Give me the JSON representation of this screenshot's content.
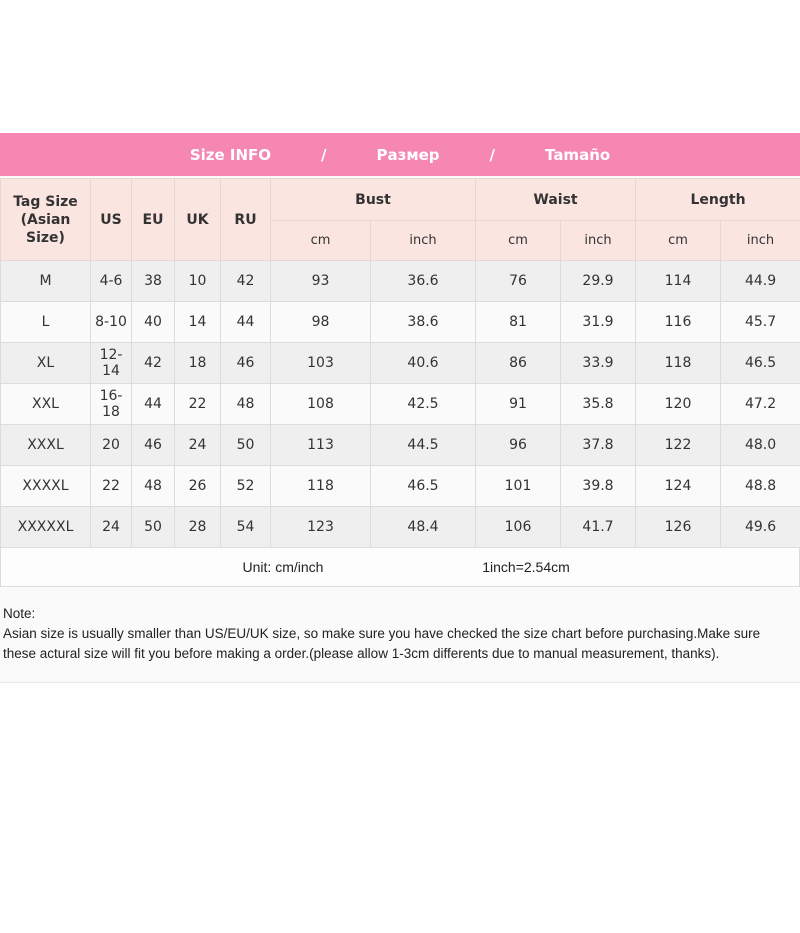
{
  "colors": {
    "accent_pink": "#f687b3",
    "header_cell_pink": "#fbe5e1",
    "row_alt_gray": "#efefef",
    "row_base": "#fafafa",
    "cell_border": "#dcdcdc",
    "text": "#333333"
  },
  "header": {
    "title_en": "Size INFO",
    "separator": "/",
    "title_ru": "Размер",
    "title_es": "Tamaño"
  },
  "table": {
    "tag_size_header": "Tag Size\n(Asian Size)",
    "size_system_headers": [
      "US",
      "EU",
      "UK",
      "RU"
    ],
    "measure_headers": [
      "Bust",
      "Waist",
      "Length"
    ],
    "cm_inch_headers": [
      "cm",
      "inch",
      "cm",
      "inch",
      "cm",
      "inch"
    ]
  },
  "footer": {
    "unit_label": "Unit: cm/inch",
    "conversion": "1inch=2.54cm"
  },
  "note": {
    "label": "Note:",
    "text": "Asian size is usually smaller than US/EU/UK size, so make sure you have checked the size chart before purchasing.Make sure these actural size will fit you before making a order.(please allow 1-3cm differents due to manual measurement, thanks)."
  },
  "chart_data": {
    "type": "table",
    "title": "Size INFO / Размер / Tamaño",
    "columns": [
      "Tag Size (Asian Size)",
      "US",
      "EU",
      "UK",
      "RU",
      "Bust cm",
      "Bust inch",
      "Waist cm",
      "Waist inch",
      "Length cm",
      "Length inch"
    ],
    "rows": [
      [
        "M",
        "4-6",
        "38",
        "10",
        "42",
        "93",
        "36.6",
        "76",
        "29.9",
        "114",
        "44.9"
      ],
      [
        "L",
        "8-10",
        "40",
        "14",
        "44",
        "98",
        "38.6",
        "81",
        "31.9",
        "116",
        "45.7"
      ],
      [
        "XL",
        "12-14",
        "42",
        "18",
        "46",
        "103",
        "40.6",
        "86",
        "33.9",
        "118",
        "46.5"
      ],
      [
        "XXL",
        "16-18",
        "44",
        "22",
        "48",
        "108",
        "42.5",
        "91",
        "35.8",
        "120",
        "47.2"
      ],
      [
        "XXXL",
        "20",
        "46",
        "24",
        "50",
        "113",
        "44.5",
        "96",
        "37.8",
        "122",
        "48.0"
      ],
      [
        "XXXXL",
        "22",
        "48",
        "26",
        "52",
        "118",
        "46.5",
        "101",
        "39.8",
        "124",
        "48.8"
      ],
      [
        "XXXXXL",
        "24",
        "50",
        "28",
        "54",
        "123",
        "48.4",
        "106",
        "41.7",
        "126",
        "49.6"
      ]
    ],
    "notes": "Unit: cm/inch; 1inch=2.54cm"
  }
}
